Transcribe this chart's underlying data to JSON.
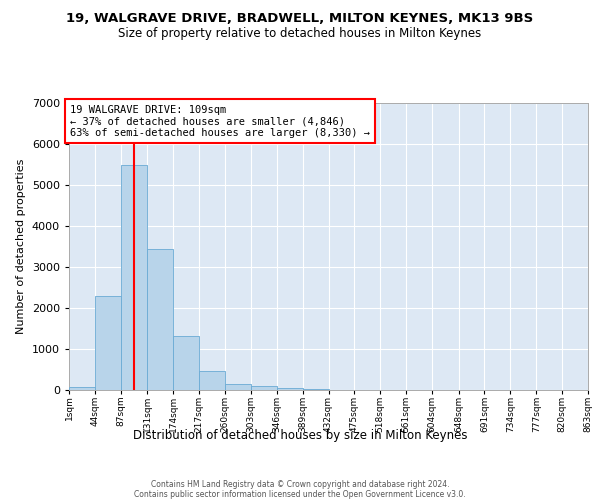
{
  "title_line1": "19, WALGRAVE DRIVE, BRADWELL, MILTON KEYNES, MK13 9BS",
  "title_line2": "Size of property relative to detached houses in Milton Keynes",
  "xlabel": "Distribution of detached houses by size in Milton Keynes",
  "ylabel": "Number of detached properties",
  "bar_color": "#b8d4ea",
  "bar_edge_color": "#6aaad4",
  "background_color": "#dde8f4",
  "grid_color": "#ffffff",
  "annotation_text": "19 WALGRAVE DRIVE: 109sqm\n← 37% of detached houses are smaller (4,846)\n63% of semi-detached houses are larger (8,330) →",
  "property_size_sqm": 109,
  "footer_line1": "Contains HM Land Registry data © Crown copyright and database right 2024.",
  "footer_line2": "Contains public sector information licensed under the Open Government Licence v3.0.",
  "bins": [
    1,
    44,
    87,
    131,
    174,
    217,
    260,
    303,
    346,
    389,
    432,
    475,
    518,
    561,
    604,
    648,
    691,
    734,
    777,
    820,
    863
  ],
  "bin_labels": [
    "1sqm",
    "44sqm",
    "87sqm",
    "131sqm",
    "174sqm",
    "217sqm",
    "260sqm",
    "303sqm",
    "346sqm",
    "389sqm",
    "432sqm",
    "475sqm",
    "518sqm",
    "561sqm",
    "604sqm",
    "648sqm",
    "691sqm",
    "734sqm",
    "777sqm",
    "820sqm",
    "863sqm"
  ],
  "bar_heights": [
    80,
    2280,
    5480,
    3430,
    1310,
    460,
    155,
    90,
    55,
    30,
    0,
    0,
    0,
    0,
    0,
    0,
    0,
    0,
    0,
    0
  ],
  "ylim_max": 7000,
  "yticks": [
    0,
    1000,
    2000,
    3000,
    4000,
    5000,
    6000,
    7000
  ]
}
